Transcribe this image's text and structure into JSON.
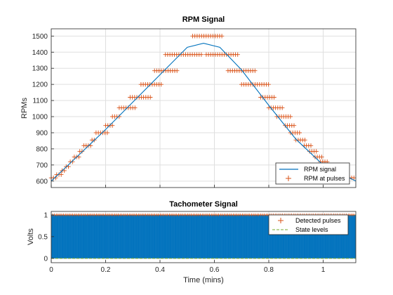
{
  "chart_data": [
    {
      "type": "line",
      "title": "RPM Signal",
      "xlabel": "",
      "ylabel": "RPMs",
      "xlim": [
        0,
        1.12
      ],
      "ylim": [
        560,
        1545
      ],
      "xticks": [
        0,
        0.2,
        0.4,
        0.6,
        0.8,
        1.0
      ],
      "yticks": [
        600,
        700,
        800,
        900,
        1000,
        1100,
        1200,
        1300,
        1400,
        1500
      ],
      "ytick_labels": [
        "600",
        "700",
        "800",
        "900",
        "1000",
        "1100",
        "1200",
        "1300",
        "1400",
        "1500"
      ],
      "grid": true,
      "legend": "bottom-right",
      "series": [
        {
          "name": "RPM signal",
          "style": "line",
          "color": "#0072BD",
          "x": [
            0,
            0.1,
            0.2,
            0.3,
            0.4,
            0.5,
            0.56,
            0.62,
            0.7,
            0.8,
            0.9,
            1.0,
            1.12
          ],
          "y": [
            600,
            760,
            920,
            1090,
            1260,
            1430,
            1455,
            1430,
            1290,
            1070,
            860,
            700,
            600
          ]
        },
        {
          "name": "RPM at pulses",
          "style": "marker-plus",
          "color": "#D95319",
          "levels": [
            {
              "y": 620,
              "x_start": 0.0,
              "x_end": 0.02
            },
            {
              "y": 640,
              "x_start": 0.02,
              "x_end": 0.04
            },
            {
              "y": 665,
              "x_start": 0.04,
              "x_end": 0.055
            },
            {
              "y": 690,
              "x_start": 0.055,
              "x_end": 0.07
            },
            {
              "y": 720,
              "x_start": 0.07,
              "x_end": 0.085
            },
            {
              "y": 750,
              "x_start": 0.085,
              "x_end": 0.105
            },
            {
              "y": 785,
              "x_start": 0.105,
              "x_end": 0.12
            },
            {
              "y": 820,
              "x_start": 0.12,
              "x_end": 0.15
            },
            {
              "y": 855,
              "x_start": 0.15,
              "x_end": 0.165
            },
            {
              "y": 900,
              "x_start": 0.165,
              "x_end": 0.21
            },
            {
              "y": 945,
              "x_start": 0.2,
              "x_end": 0.225
            },
            {
              "y": 1000,
              "x_start": 0.225,
              "x_end": 0.25
            },
            {
              "y": 1055,
              "x_start": 0.25,
              "x_end": 0.31
            },
            {
              "y": 1120,
              "x_start": 0.29,
              "x_end": 0.37
            },
            {
              "y": 1200,
              "x_start": 0.33,
              "x_end": 0.41
            },
            {
              "y": 1285,
              "x_start": 0.38,
              "x_end": 0.47
            },
            {
              "y": 1385,
              "x_start": 0.42,
              "x_end": 0.56
            },
            {
              "y": 1500,
              "x_start": 0.52,
              "x_end": 0.63
            },
            {
              "y": 1385,
              "x_start": 0.57,
              "x_end": 0.69
            },
            {
              "y": 1285,
              "x_start": 0.65,
              "x_end": 0.75
            },
            {
              "y": 1200,
              "x_start": 0.7,
              "x_end": 0.8
            },
            {
              "y": 1120,
              "x_start": 0.77,
              "x_end": 0.82
            },
            {
              "y": 1055,
              "x_start": 0.8,
              "x_end": 0.85
            },
            {
              "y": 1000,
              "x_start": 0.83,
              "x_end": 0.88
            },
            {
              "y": 945,
              "x_start": 0.86,
              "x_end": 0.9
            },
            {
              "y": 900,
              "x_start": 0.88,
              "x_end": 0.92
            },
            {
              "y": 855,
              "x_start": 0.9,
              "x_end": 0.94
            },
            {
              "y": 820,
              "x_start": 0.93,
              "x_end": 0.96
            },
            {
              "y": 785,
              "x_start": 0.95,
              "x_end": 0.98
            },
            {
              "y": 750,
              "x_start": 0.97,
              "x_end": 1.0
            },
            {
              "y": 720,
              "x_start": 0.99,
              "x_end": 1.02
            },
            {
              "y": 690,
              "x_start": 1.01,
              "x_end": 1.04
            },
            {
              "y": 665,
              "x_start": 1.03,
              "x_end": 1.06
            },
            {
              "y": 640,
              "x_start": 1.06,
              "x_end": 1.09
            },
            {
              "y": 620,
              "x_start": 1.08,
              "x_end": 1.12
            }
          ]
        }
      ]
    },
    {
      "type": "line",
      "title": "Tachometer Signal",
      "xlabel": "Time (mins)",
      "ylabel": "Volts",
      "xlim": [
        0,
        1.12
      ],
      "ylim": [
        -0.1,
        1.08
      ],
      "xticks": [
        0,
        0.2,
        0.4,
        0.6,
        0.8,
        1.0
      ],
      "xtick_labels": [
        "0",
        "0.2",
        "0.4",
        "0.6",
        "0.8",
        "1"
      ],
      "yticks": [
        0,
        0.5,
        1
      ],
      "ytick_labels": [
        "0",
        "0.5",
        "1"
      ],
      "grid": true,
      "legend": "top-right",
      "series": [
        {
          "name": "",
          "style": "filled-pulse-train",
          "color": "#0072BD",
          "low": 0,
          "high": 1
        },
        {
          "name": "Detected pulses",
          "style": "marker-plus",
          "color": "#D95319",
          "y": 1
        },
        {
          "name": "State levels",
          "style": "dashed-line",
          "color": "#77AC30",
          "levels": [
            0,
            1
          ]
        }
      ]
    }
  ]
}
